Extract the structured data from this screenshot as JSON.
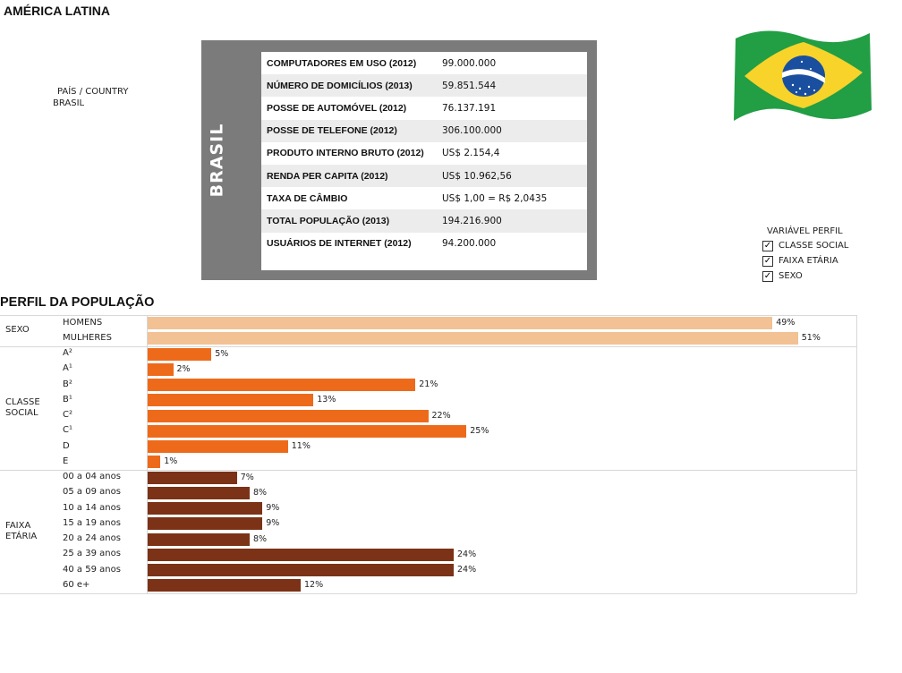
{
  "header": {
    "title": "AMÉRICA LATINA"
  },
  "filter": {
    "label": "PAÍS / COUNTRY",
    "value": "BRASIL"
  },
  "country_panel": {
    "side_label": "BRASIL",
    "stats": [
      {
        "label": "COMPUTADORES EM USO (2012)",
        "value": "99.000.000"
      },
      {
        "label": "NÚMERO DE DOMICÍLIOS (2013)",
        "value": "59.851.544"
      },
      {
        "label": "POSSE DE AUTOMÓVEL (2012)",
        "value": "76.137.191"
      },
      {
        "label": "POSSE DE TELEFONE (2012)",
        "value": "306.100.000"
      },
      {
        "label": "PRODUTO INTERNO BRUTO (2012)",
        "value": "US$ 2.154,4"
      },
      {
        "label": "RENDA PER CAPITA (2012)",
        "value": "US$ 10.962,56"
      },
      {
        "label": "TAXA DE CÂMBIO",
        "value": "US$ 1,00 = R$ 2,0435"
      },
      {
        "label": "TOTAL POPULAÇÃO (2013)",
        "value": "194.216.900"
      },
      {
        "label": "USUÁRIOS DE INTERNET (2012)",
        "value": "94.200.000"
      }
    ]
  },
  "flag": {
    "icon": "brazil-flag-icon",
    "colors": {
      "green": "#229e45",
      "yellow": "#f8d32a",
      "blue": "#1a4f9f"
    }
  },
  "legend": {
    "title": "VARIÁVEL PERFIL",
    "items": [
      {
        "label": "CLASSE SOCIAL",
        "checked": true
      },
      {
        "label": "FAIXA ETÁRIA",
        "checked": true
      },
      {
        "label": "SEXO",
        "checked": true
      }
    ]
  },
  "section": {
    "title": "PERFIL DA POPULAÇÃO"
  },
  "chart_data": {
    "type": "bar",
    "orientation": "horizontal",
    "unit": "%",
    "groups": [
      {
        "name": "SEXO",
        "color": "#f2c194",
        "categories": [
          "HOMENS",
          "MULHERES"
        ],
        "values": [
          49,
          51
        ],
        "labels": [
          "49%",
          "51%"
        ]
      },
      {
        "name": "CLASSE SOCIAL",
        "color": "#ee6a1b",
        "categories": [
          "A²",
          "A¹",
          "B²",
          "B¹",
          "C²",
          "C¹",
          "D",
          "E"
        ],
        "values": [
          5,
          2,
          21,
          13,
          22,
          25,
          11,
          1
        ],
        "labels": [
          "5%",
          "2%",
          "21%",
          "13%",
          "22%",
          "25%",
          "11%",
          "1%"
        ]
      },
      {
        "name": "FAIXA ETÁRIA",
        "color": "#7b3216",
        "categories": [
          "00 a 04 anos",
          "05 a 09 anos",
          "10 a 14 anos",
          "15 a 19 anos",
          "20 a 24 anos",
          "25 a 39 anos",
          "40 a 59 anos",
          "60 e+"
        ],
        "values": [
          7,
          8,
          9,
          9,
          8,
          24,
          24,
          12
        ],
        "labels": [
          "7%",
          "8%",
          "9%",
          "9%",
          "8%",
          "24%",
          "24%",
          "12%"
        ]
      }
    ]
  }
}
